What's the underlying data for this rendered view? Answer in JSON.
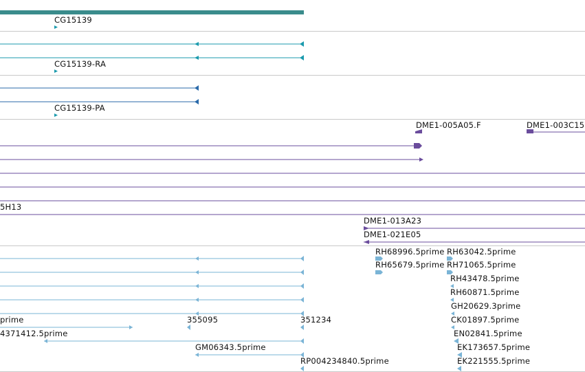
{
  "colors": {
    "gene": "#3a8c8c",
    "transcript_teal": "#1a9aad",
    "transcript_blue": "#2a6aaa",
    "clone_purple": "#6a4c9c",
    "est_lightblue": "#7ab4d6",
    "separator": "#c8c8c8"
  },
  "gene_track": {
    "gene_label": "CG15139"
  },
  "transcript_track": {
    "transcript_label": "CG15139-RA"
  },
  "protein_track": {
    "protein_label": "CG15139-PA"
  },
  "clone_track": {
    "clone_a": "DME1-005A05.F",
    "clone_b": "DME1-003C15",
    "clone_c": "5H13",
    "clone_d": "DME1-013A23",
    "clone_e": "DME1-021E05"
  },
  "est_track": {
    "est_1": "RH68996.5prime",
    "est_2": "RH63042.5prime",
    "est_3": "RH65679.5prime",
    "est_4": "RH71065.5prime",
    "est_5": "RH43478.5prime",
    "est_6": "RH60871.5prime",
    "est_7": "GH20629.3prime",
    "est_8": "prime",
    "est_9": "355095",
    "est_10": "351234",
    "est_11": "CK01897.5prime",
    "est_12": "4371412.5prime",
    "est_13": "EN02841.5prime",
    "est_14": "GM06343.5prime",
    "est_15": "EK173657.5prime",
    "est_16": "RP004234840.5prime",
    "est_17": "EK221555.5prime"
  }
}
